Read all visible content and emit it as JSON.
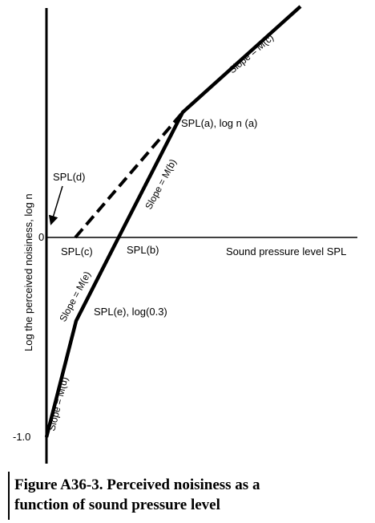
{
  "figure": {
    "axes": {
      "ylabel": "Log the perceived noisiness, log n",
      "xlabel": "Sound pressure level SPL",
      "zero_label": "0",
      "minus_one_label": "-1.0"
    },
    "points": {
      "d": "SPL(d)",
      "c": "SPL(c)",
      "b": "SPL(b)",
      "a": "SPL(a), log n (a)",
      "e": "SPL(e), log(0.3)"
    },
    "slopes": {
      "c": "Slope = M(c)",
      "b": "Slope = M(b)",
      "e": "Slope = M(e)",
      "d": "Slope = M(d)"
    }
  },
  "caption": {
    "line1": "Figure A36-3.  Perceived noisiness as a",
    "line2": "function of sound pressure level"
  }
}
